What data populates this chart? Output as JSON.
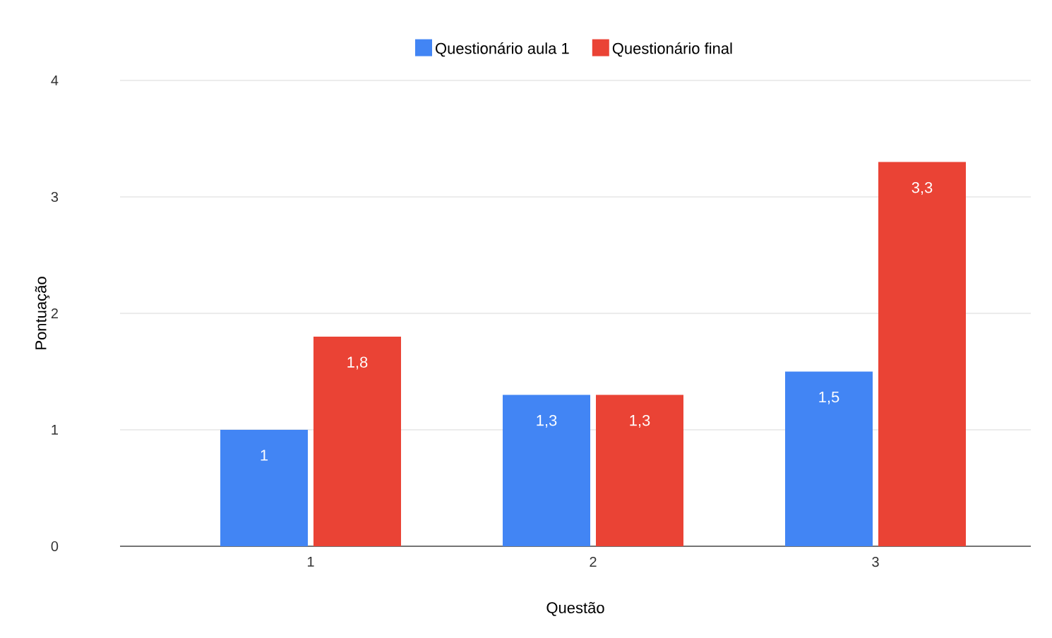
{
  "chart_data": {
    "type": "bar",
    "xlabel": "Questão",
    "ylabel": "Pontuação",
    "categories": [
      "1",
      "2",
      "3"
    ],
    "series": [
      {
        "name": "Questionário aula 1",
        "color": "#4285f4",
        "values": [
          1,
          1.3,
          1.5
        ],
        "value_labels": [
          "1",
          "1,3",
          "1,5"
        ]
      },
      {
        "name": "Questionário final",
        "color": "#ea4335",
        "values": [
          1.8,
          1.3,
          3.3
        ],
        "value_labels": [
          "1,8",
          "1,3",
          "3,3"
        ]
      }
    ],
    "ylim": [
      0,
      4
    ],
    "yticks": [
      0,
      1,
      2,
      3,
      4
    ],
    "grid": "y",
    "legend": "top"
  }
}
